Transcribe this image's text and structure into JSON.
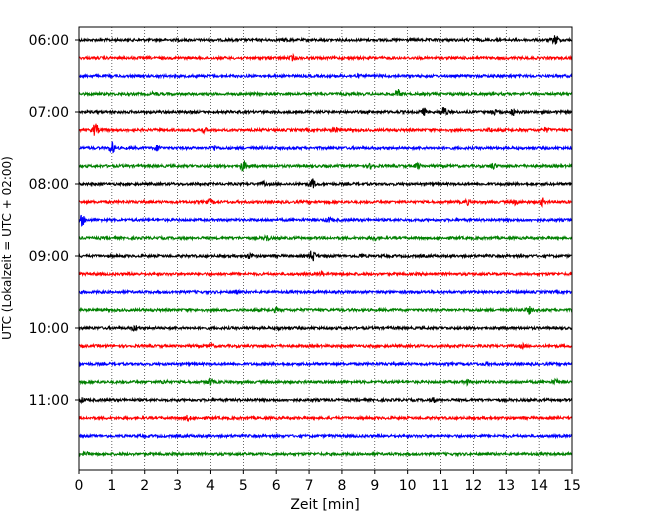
{
  "chart_data": {
    "type": "line",
    "xlabel": "Zeit  [min]",
    "ylabel": "UTC (Lokalzeit = UTC + 02:00)",
    "xlim": [
      0,
      15
    ],
    "x_ticks": [
      "0",
      "1",
      "2",
      "3",
      "4",
      "5",
      "6",
      "7",
      "8",
      "9",
      "10",
      "11",
      "12",
      "13",
      "14",
      "15"
    ],
    "y_tick_labels": [
      "06:00",
      "07:00",
      "08:00",
      "09:00",
      "10:00",
      "11:00"
    ],
    "grid": "vertical-dotted",
    "colors": [
      "#000000",
      "#ff0000",
      "#0000ff",
      "#008000"
    ],
    "traces": [
      {
        "start": "06:00",
        "events": [
          [
            6.3,
            1.3
          ],
          [
            14.5,
            5
          ]
        ]
      },
      {
        "start": "06:15",
        "events": [
          [
            6.5,
            2.2
          ]
        ]
      },
      {
        "start": "06:30",
        "events": [
          [
            8.5,
            1.2
          ]
        ]
      },
      {
        "start": "06:45",
        "events": [
          [
            2.3,
            1.4
          ],
          [
            9.7,
            4
          ]
        ]
      },
      {
        "start": "07:00",
        "events": [
          [
            10.5,
            3
          ],
          [
            11.1,
            5.5
          ],
          [
            12.6,
            3
          ],
          [
            13.2,
            3
          ]
        ]
      },
      {
        "start": "07:15",
        "events": [
          [
            0.5,
            6
          ],
          [
            3.8,
            2.2
          ],
          [
            7.8,
            2.2
          ],
          [
            12.5,
            1.6
          ],
          [
            14.2,
            2
          ]
        ]
      },
      {
        "start": "07:30",
        "events": [
          [
            1.0,
            5.5
          ],
          [
            2.4,
            2.4
          ],
          [
            4.1,
            2.2
          ]
        ]
      },
      {
        "start": "07:45",
        "events": [
          [
            5.0,
            5
          ],
          [
            8.9,
            2.4
          ],
          [
            10.3,
            2.4
          ],
          [
            12.6,
            2.6
          ]
        ]
      },
      {
        "start": "08:00",
        "events": [
          [
            5.6,
            1.4
          ],
          [
            7.1,
            4.5
          ]
        ]
      },
      {
        "start": "08:15",
        "events": [
          [
            4.0,
            2.2
          ],
          [
            11.8,
            2.2
          ],
          [
            13.3,
            2.2
          ],
          [
            14.1,
            3.2
          ]
        ]
      },
      {
        "start": "08:30",
        "events": [
          [
            0.1,
            5
          ],
          [
            7.6,
            2.2
          ]
        ]
      },
      {
        "start": "08:45",
        "events": [
          [
            5.7,
            2.8
          ],
          [
            9.0,
            2
          ]
        ]
      },
      {
        "start": "09:00",
        "events": [
          [
            5.2,
            2.3
          ],
          [
            7.1,
            6
          ],
          [
            8.6,
            1.6
          ]
        ]
      },
      {
        "start": "09:15",
        "events": [
          [
            7.4,
            1.4
          ]
        ]
      },
      {
        "start": "09:30",
        "events": [
          [
            4.8,
            1.2
          ]
        ]
      },
      {
        "start": "09:45",
        "events": [
          [
            6.0,
            1.8
          ],
          [
            13.7,
            3
          ]
        ]
      },
      {
        "start": "10:00",
        "events": [
          [
            1.7,
            2.6
          ],
          [
            6.1,
            1.2
          ]
        ]
      },
      {
        "start": "10:15",
        "events": [
          [
            4.0,
            1.6
          ],
          [
            13.5,
            1.4
          ]
        ]
      },
      {
        "start": "10:30",
        "events": [
          [
            12.4,
            1.2
          ]
        ]
      },
      {
        "start": "10:45",
        "events": [
          [
            2.6,
            1.6
          ],
          [
            4.0,
            3
          ],
          [
            11.8,
            2
          ],
          [
            14.5,
            2
          ]
        ]
      },
      {
        "start": "11:00",
        "events": [
          [
            0.1,
            1.6
          ],
          [
            10.8,
            2
          ]
        ]
      },
      {
        "start": "11:15",
        "events": [
          [
            3.3,
            2
          ]
        ]
      },
      {
        "start": "11:30",
        "events": []
      },
      {
        "start": "11:45",
        "events": [
          [
            0.2,
            1.6
          ]
        ]
      }
    ]
  }
}
